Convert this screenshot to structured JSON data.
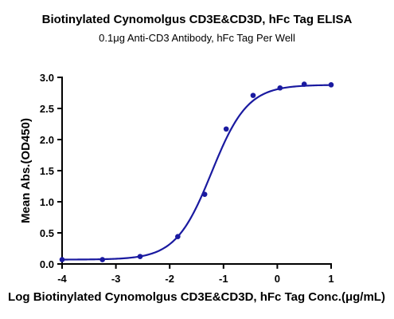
{
  "chart_data": {
    "type": "scatter",
    "title": "Biotinylated Cynomolgus CD3E&CD3D, hFc Tag ELISA",
    "subtitle": "0.1μg Anti-CD3 Antibody, hFc Tag Per Well",
    "xlabel": "Log Biotinylated Cynomolgus CD3E&CD3D, hFc Tag Conc.(μg/mL)",
    "ylabel": "Mean Abs.(OD450)",
    "xlim": [
      -4,
      1
    ],
    "ylim": [
      0,
      3
    ],
    "xticks": [
      "-4",
      "-3",
      "-2",
      "-1",
      "0",
      "1"
    ],
    "yticks": [
      "0.0",
      "0.5",
      "1.0",
      "1.5",
      "2.0",
      "2.5",
      "3.0"
    ],
    "grid": false,
    "color": "#1a1aa0",
    "points": [
      {
        "x": -4.0,
        "y": 0.07
      },
      {
        "x": -3.25,
        "y": 0.07
      },
      {
        "x": -2.55,
        "y": 0.12
      },
      {
        "x": -1.85,
        "y": 0.44
      },
      {
        "x": -1.35,
        "y": 1.12
      },
      {
        "x": -0.95,
        "y": 2.17
      },
      {
        "x": -0.45,
        "y": 2.71
      },
      {
        "x": 0.05,
        "y": 2.83
      },
      {
        "x": 0.5,
        "y": 2.89
      },
      {
        "x": 1.0,
        "y": 2.88
      }
    ],
    "fit": {
      "bottom": 0.07,
      "top": 2.88,
      "logEC50": -1.22,
      "hill": 1.3
    }
  }
}
